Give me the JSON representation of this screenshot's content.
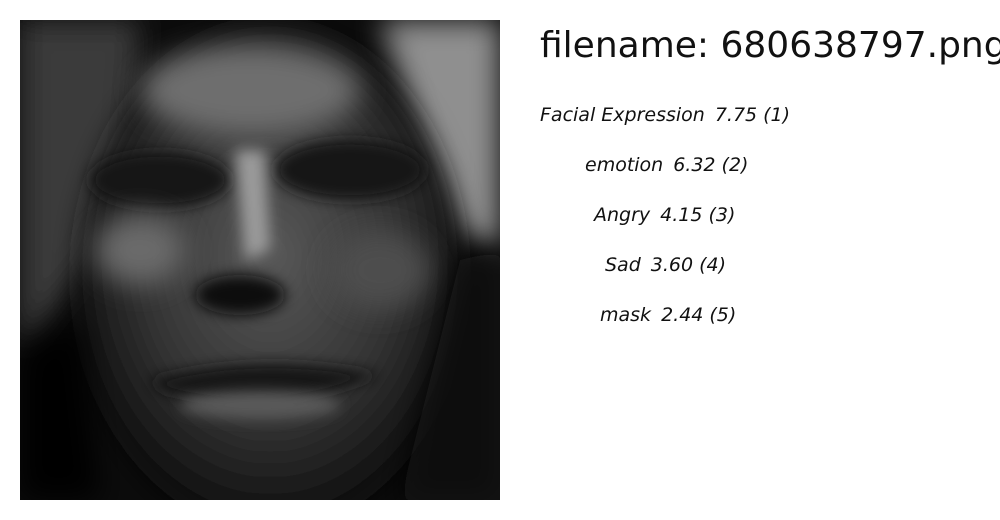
{
  "image": {
    "description_icon": "face-photo"
  },
  "filename": "filename: 680638797.png",
  "labels": [
    {
      "name": "Facial Expression",
      "score": "7.75",
      "rank": "(1)"
    },
    {
      "name": "emotion",
      "score": "6.32",
      "rank": "(2)"
    },
    {
      "name": "Angry",
      "score": "4.15",
      "rank": "(3)"
    },
    {
      "name": "Sad",
      "score": "3.60",
      "rank": "(4)"
    },
    {
      "name": "mask",
      "score": "2.44",
      "rank": "(5)"
    }
  ]
}
